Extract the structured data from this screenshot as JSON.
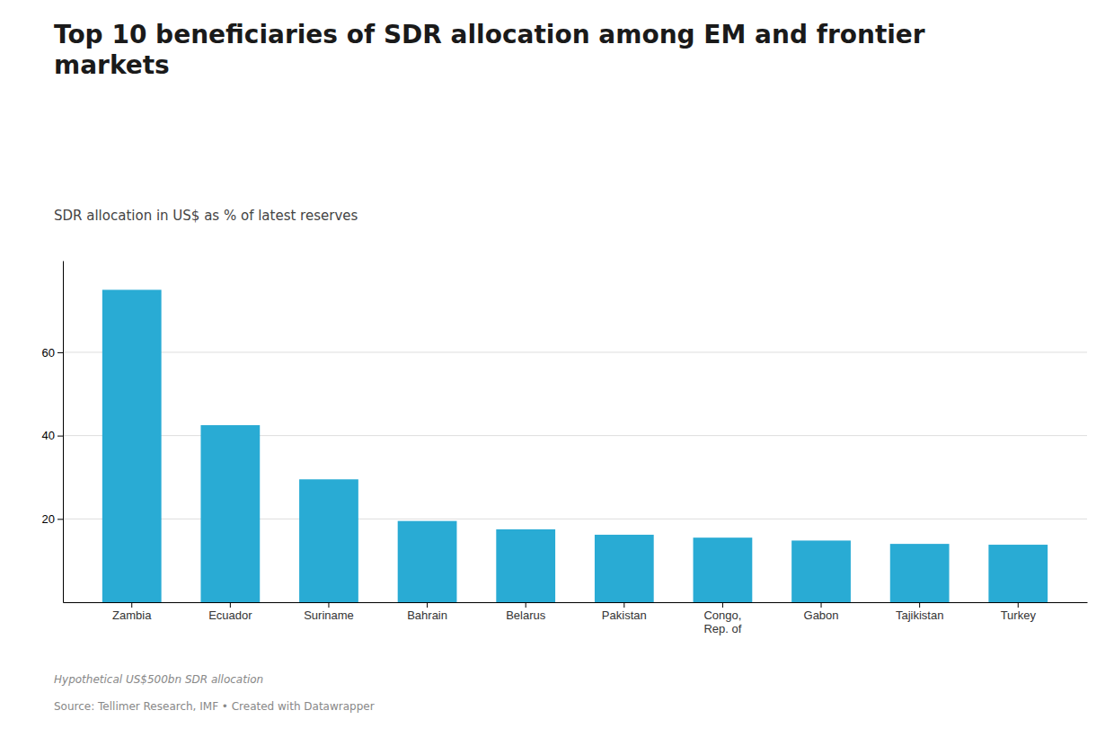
{
  "chart_data": {
    "type": "bar",
    "title": "Top 10 beneficiaries of SDR allocation among EM and frontier\nmarkets",
    "subtitle": "SDR allocation in US$ as % of latest reserves",
    "categories": [
      "Zambia",
      "Ecuador",
      "Suriname",
      "Bahrain",
      "Belarus",
      "Pakistan",
      "Congo,\nRep. of",
      "Gabon",
      "Tajikistan",
      "Turkey"
    ],
    "values": [
      75,
      42.5,
      29.5,
      19.5,
      17.5,
      16.2,
      15.5,
      14.8,
      14.0,
      13.8
    ],
    "color": "#29ABD4",
    "ylim": [
      0,
      82
    ],
    "yticks": [
      20,
      40,
      60
    ],
    "grid": true,
    "annotations": [
      "Hypothetical US$500bn SDR allocation",
      "Source: Tellimer Research, IMF • Created with Datawrapper"
    ]
  }
}
